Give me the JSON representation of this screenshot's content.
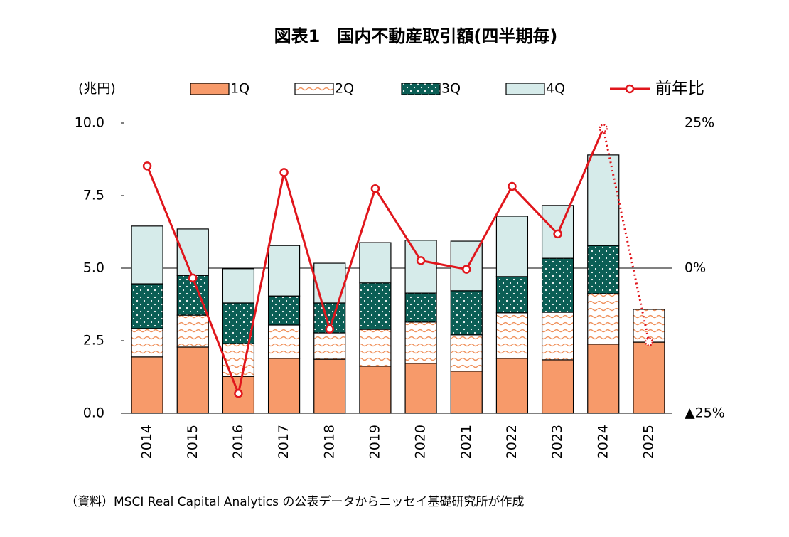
{
  "chart_data": {
    "type": "stacked_bar_line",
    "title": "図表1　国内不動産取引額(四半期毎)",
    "y_label": "(兆円)",
    "note": "（資料）MSCI Real Capital Analytics の公表データからニッセイ基礎研究所が作成",
    "categories": [
      "2014",
      "2015",
      "2016",
      "2017",
      "2018",
      "2019",
      "2020",
      "2021",
      "2022",
      "2023",
      "2024",
      "2025"
    ],
    "series": [
      {
        "name": "1Q",
        "color": "#f79a6a",
        "values": [
          1.94,
          2.28,
          1.27,
          1.89,
          1.86,
          1.62,
          1.72,
          1.45,
          1.89,
          1.84,
          2.38,
          2.45
        ]
      },
      {
        "name": "2Q",
        "color": "#ffffff",
        "pattern": "wave",
        "pattern_color": "#f0905a",
        "values": [
          0.98,
          1.1,
          1.13,
          1.15,
          0.91,
          1.27,
          1.42,
          1.25,
          1.57,
          1.64,
          1.74,
          1.13
        ]
      },
      {
        "name": "3Q",
        "color": "#0b5e55",
        "pattern": "dots",
        "pattern_color": "#ffffff",
        "values": [
          1.54,
          1.37,
          1.4,
          1.0,
          1.03,
          1.6,
          1.0,
          1.52,
          1.25,
          1.86,
          1.66,
          null
        ]
      },
      {
        "name": "4Q",
        "color": "#d6ebea",
        "values": [
          1.99,
          1.6,
          1.18,
          1.74,
          1.37,
          1.39,
          1.82,
          1.71,
          2.08,
          1.82,
          3.12,
          null
        ]
      },
      {
        "name": "前年比",
        "type": "line",
        "axis": "y2",
        "color": "#e0161c",
        "last_segment_style": "dotted",
        "values": [
          17.6,
          -1.7,
          -21.6,
          16.5,
          -10.5,
          13.7,
          1.3,
          -0.2,
          14.1,
          5.9,
          24.1,
          -12.7
        ]
      }
    ],
    "ylim": [
      0,
      10
    ],
    "yticks": [
      {
        "value": 0,
        "label": "0.0"
      },
      2.5,
      {
        "value": 5,
        "label": "5.0"
      },
      7.5,
      {
        "value": 10,
        "label": "10.0"
      }
    ],
    "y2lim": [
      -25,
      25
    ],
    "y2ticks": [
      {
        "value": 25,
        "label": "25%"
      },
      {
        "value": 0,
        "label": "0%"
      },
      {
        "value": -25,
        "label": "▲25%"
      }
    ],
    "grid": false
  }
}
